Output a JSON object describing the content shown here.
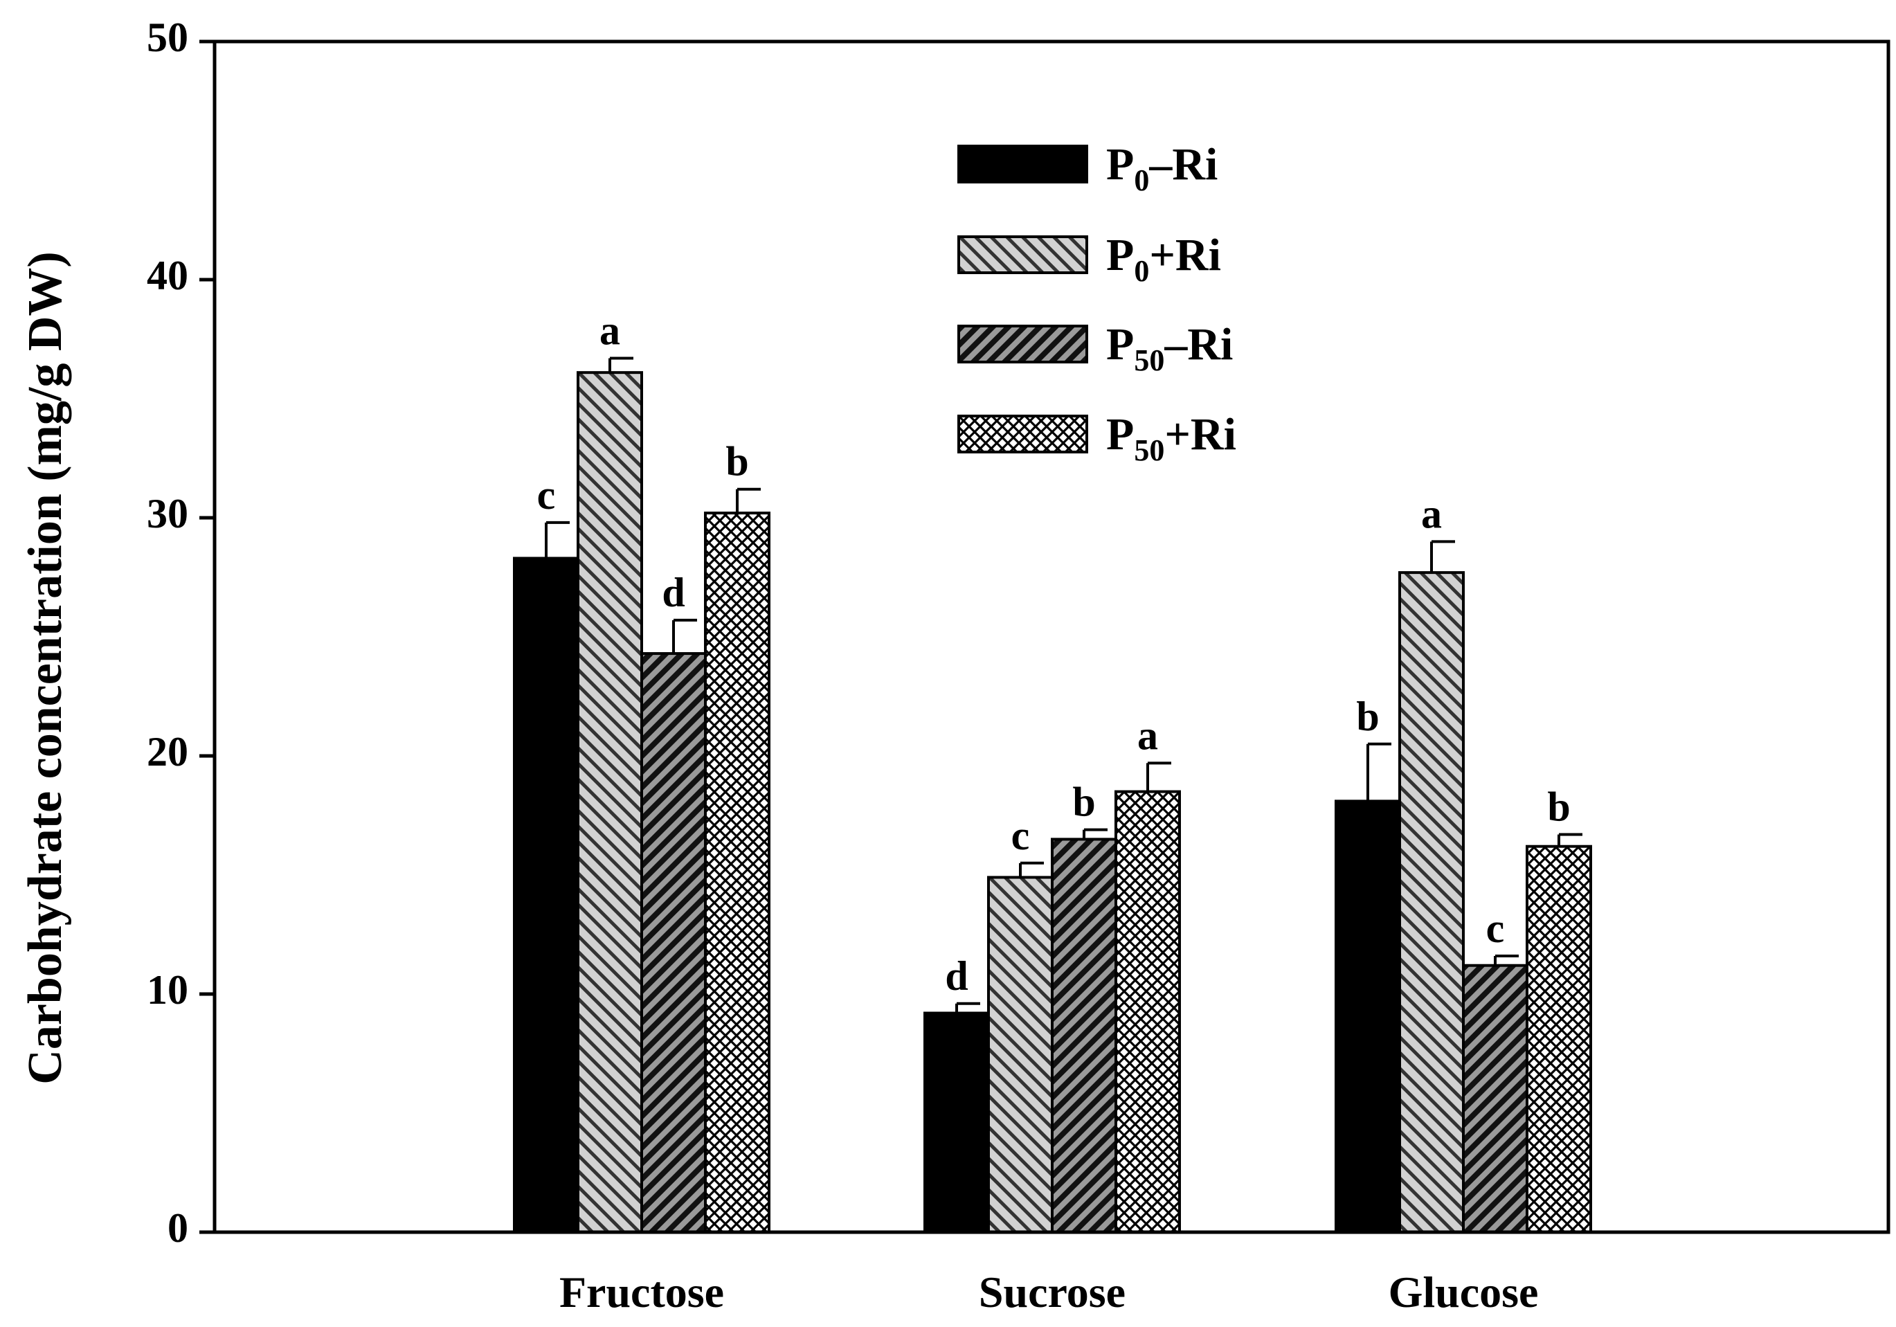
{
  "chart_data": {
    "type": "bar",
    "title": "",
    "xlabel": "",
    "ylabel": "Carbohydrate concentration (mg/g DW)",
    "ylim": [
      0,
      50
    ],
    "yticks": [
      0,
      10,
      20,
      30,
      40,
      50
    ],
    "grid": false,
    "legend_position": "top-center",
    "categories": [
      "Fructose",
      "Sucrose",
      "Glucose"
    ],
    "series": [
      {
        "name": "P0–Ri",
        "legend_base": "P",
        "legend_sub": "0",
        "legend_suffix": "–Ri",
        "pattern": "solid",
        "color": "#000000",
        "values": [
          28.3,
          9.2,
          18.1
        ],
        "errors": [
          1.5,
          0.4,
          2.4
        ],
        "letters": [
          "c",
          "d",
          "b"
        ]
      },
      {
        "name": "P0+Ri",
        "legend_base": "P",
        "legend_sub": "0",
        "legend_suffix": "+Ri",
        "pattern": "light-diagonal",
        "color": "#c8c8c8",
        "values": [
          36.1,
          14.9,
          27.7
        ],
        "errors": [
          0.6,
          0.6,
          1.3
        ],
        "letters": [
          "a",
          "c",
          "a"
        ]
      },
      {
        "name": "P50–Ri",
        "legend_base": "P",
        "legend_sub": "50",
        "legend_suffix": "–Ri",
        "pattern": "dark-diagonal",
        "color": "#5a5a5a",
        "values": [
          24.3,
          16.5,
          11.2
        ],
        "errors": [
          1.4,
          0.4,
          0.4
        ],
        "letters": [
          "d",
          "b",
          "c"
        ]
      },
      {
        "name": "P50+Ri",
        "legend_base": "P",
        "legend_sub": "50",
        "legend_suffix": "+Ri",
        "pattern": "crosshatch",
        "color": "#ffffff",
        "values": [
          30.2,
          18.5,
          16.2
        ],
        "errors": [
          1.0,
          1.2,
          0.5
        ],
        "letters": [
          "b",
          "a",
          "b"
        ]
      }
    ]
  }
}
